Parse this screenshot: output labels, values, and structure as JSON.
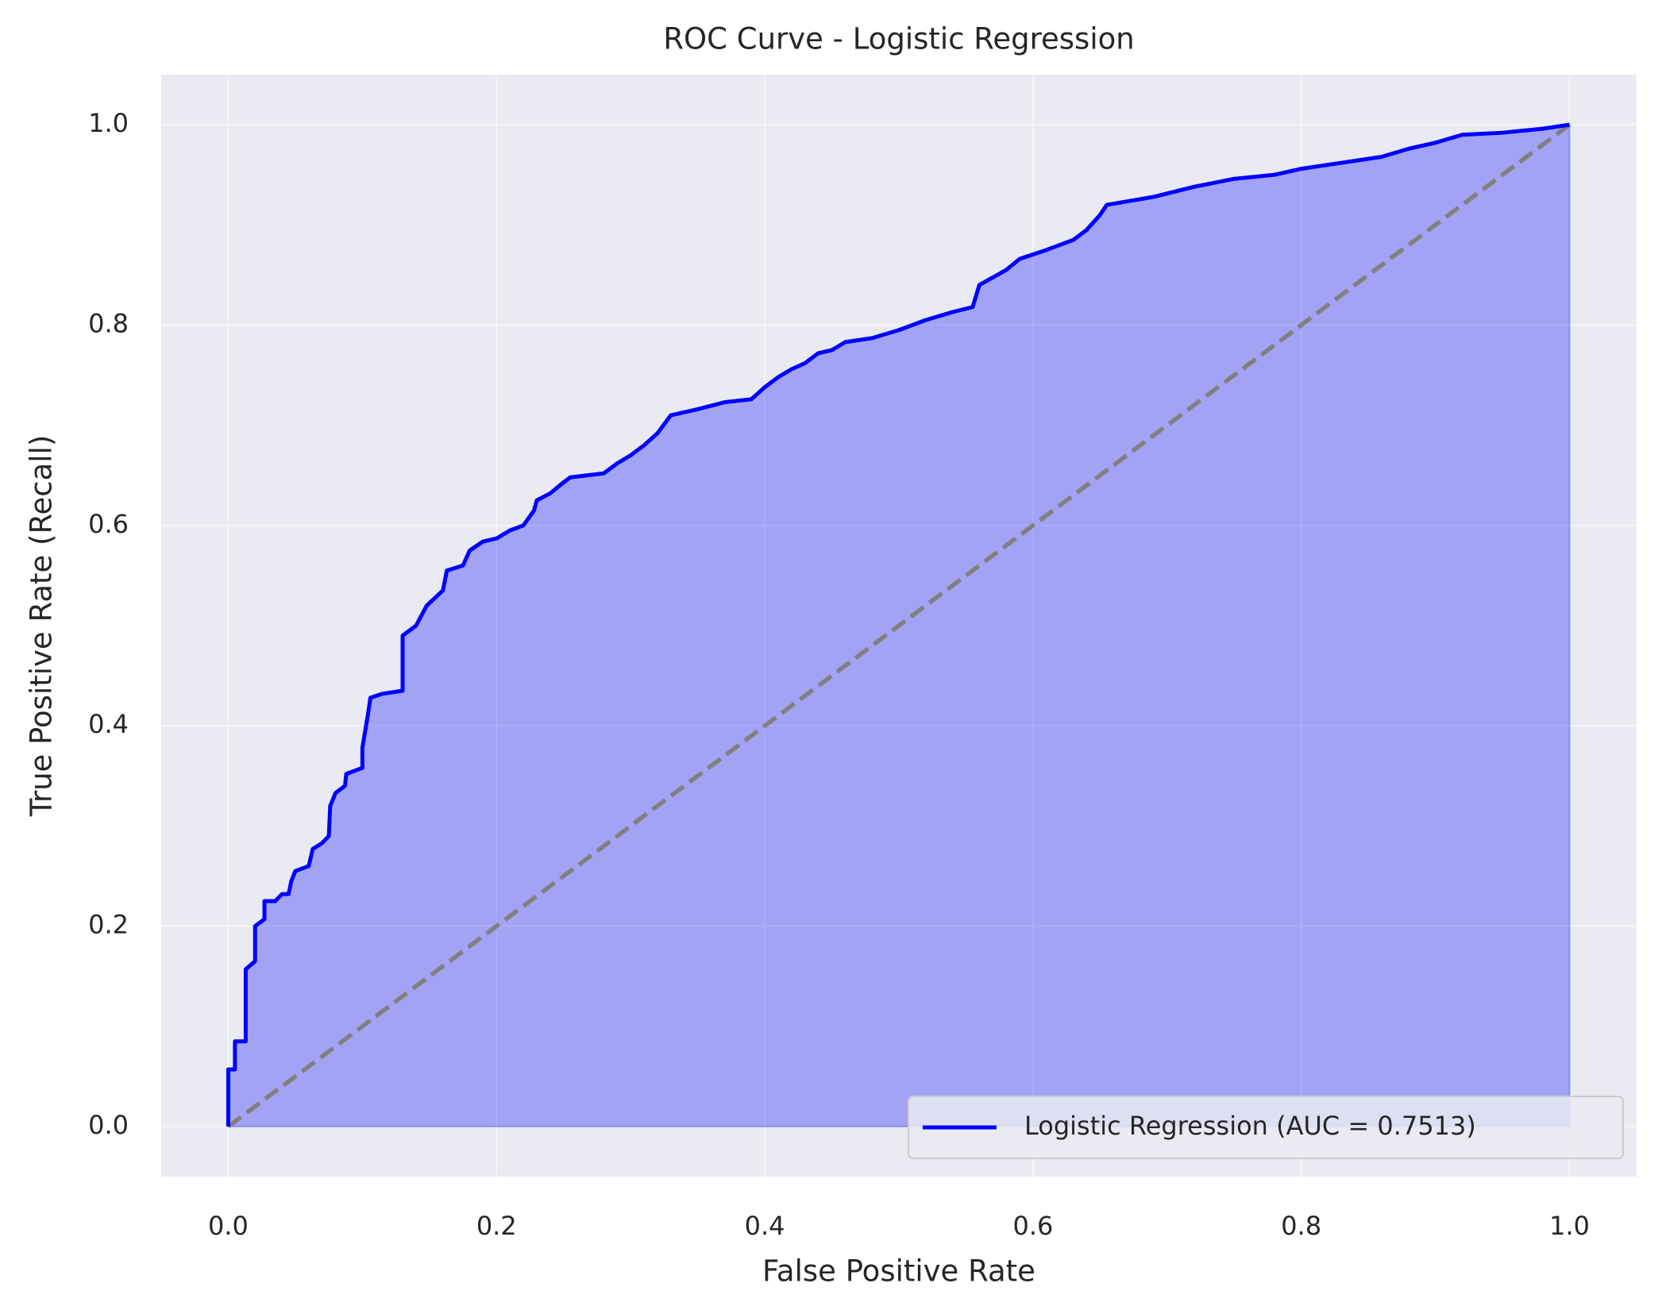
{
  "chart_data": {
    "type": "line",
    "title": "ROC Curve - Logistic Regression",
    "x_label": "False Positive Rate",
    "y_label": "True Positive Rate (Recall)",
    "xlim": [
      -0.05,
      1.05
    ],
    "ylim": [
      -0.05,
      1.05
    ],
    "xticks": [
      {
        "value": 0,
        "label": "0.0"
      },
      0.2,
      0.4,
      0.6,
      0.8,
      {
        "value": 1,
        "label": "1.0"
      }
    ],
    "yticks": [
      {
        "value": 0,
        "label": "0.0"
      },
      0.2,
      0.4,
      0.6,
      0.8,
      {
        "value": 1,
        "label": "1.0"
      }
    ],
    "grid": true,
    "legend_position": "lower right",
    "series": [
      {
        "name": "Logistic Regression (AUC = 0.7513)",
        "color": "#0000ff",
        "fill": true,
        "x": [
          0,
          0,
          0.005,
          0.005,
          0.013,
          0.013,
          0.02,
          0.02,
          0.027,
          0.027,
          0.035,
          0.04,
          0.045,
          0.047,
          0.05,
          0.06,
          0.063,
          0.07,
          0.075,
          0.076,
          0.08,
          0.087,
          0.088,
          0.1,
          0.1,
          0.104,
          0.106,
          0.115,
          0.13,
          0.13,
          0.14,
          0.148,
          0.16,
          0.163,
          0.175,
          0.18,
          0.19,
          0.2,
          0.21,
          0.22,
          0.228,
          0.23,
          0.24,
          0.25,
          0.255,
          0.28,
          0.29,
          0.3,
          0.31,
          0.32,
          0.33,
          0.35,
          0.37,
          0.39,
          0.4,
          0.41,
          0.42,
          0.43,
          0.44,
          0.45,
          0.46,
          0.48,
          0.5,
          0.52,
          0.54,
          0.555,
          0.56,
          0.58,
          0.59,
          0.61,
          0.63,
          0.64,
          0.65,
          0.655,
          0.69,
          0.72,
          0.75,
          0.78,
          0.8,
          0.83,
          0.86,
          0.88,
          0.9,
          0.92,
          0.95,
          0.98,
          1
        ],
        "y": [
          0,
          0.057,
          0.057,
          0.085,
          0.085,
          0.157,
          0.165,
          0.2,
          0.207,
          0.225,
          0.225,
          0.232,
          0.232,
          0.245,
          0.255,
          0.26,
          0.277,
          0.283,
          0.29,
          0.32,
          0.333,
          0.34,
          0.352,
          0.358,
          0.378,
          0.41,
          0.428,
          0.432,
          0.435,
          0.49,
          0.5,
          0.52,
          0.535,
          0.555,
          0.56,
          0.575,
          0.584,
          0.587,
          0.595,
          0.6,
          0.615,
          0.625,
          0.632,
          0.643,
          0.648,
          0.652,
          0.662,
          0.67,
          0.68,
          0.692,
          0.71,
          0.716,
          0.723,
          0.726,
          0.738,
          0.748,
          0.756,
          0.762,
          0.772,
          0.775,
          0.783,
          0.787,
          0.795,
          0.805,
          0.813,
          0.818,
          0.84,
          0.855,
          0.866,
          0.875,
          0.885,
          0.895,
          0.91,
          0.92,
          0.928,
          0.938,
          0.946,
          0.95,
          0.956,
          0.962,
          0.968,
          0.976,
          0.982,
          0.99,
          0.992,
          0.996,
          1
        ]
      }
    ],
    "diagonal": {
      "x": [
        0,
        1
      ],
      "y": [
        0,
        1
      ],
      "color": "#808080",
      "dashed": true
    }
  }
}
